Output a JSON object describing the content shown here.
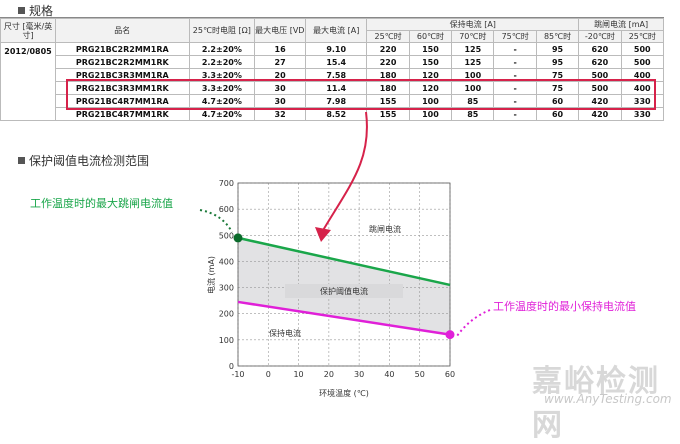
{
  "section1_title": "规格",
  "section2_title": "保护阈值电流检测范围",
  "table": {
    "headers": {
      "size": "尺寸 [毫米/英寸]",
      "part": "品名",
      "resistance": "25℃时电阻 [Ω]",
      "vmax": "最大电压 [VDC]",
      "imax": "最大电流 [A]",
      "hold": "保持电流 [A]",
      "trip": "跳闸电流 [mA]",
      "hold_temps": [
        "25℃时",
        "60℃时",
        "70℃时",
        "75℃时",
        "85℃时"
      ],
      "trip_temps": [
        "-20℃时",
        "25℃时"
      ]
    },
    "size_value": "2012/0805",
    "rows": [
      [
        "PRG21BC2R2MM1RA",
        "2.2±20%",
        "16",
        "9.10",
        "220",
        "150",
        "125",
        "-",
        "95",
        "620",
        "500"
      ],
      [
        "PRG21BC2R2MM1RK",
        "2.2±20%",
        "27",
        "15.4",
        "220",
        "150",
        "125",
        "-",
        "95",
        "620",
        "500"
      ],
      [
        "PRG21BC3R3MM1RA",
        "3.3±20%",
        "20",
        "7.58",
        "180",
        "120",
        "100",
        "-",
        "75",
        "500",
        "400"
      ],
      [
        "PRG21BC3R3MM1RK",
        "3.3±20%",
        "30",
        "11.4",
        "180",
        "120",
        "100",
        "-",
        "75",
        "500",
        "400"
      ],
      [
        "PRG21BC4R7MM1RA",
        "4.7±20%",
        "30",
        "7.98",
        "155",
        "100",
        "85",
        "-",
        "60",
        "420",
        "330"
      ],
      [
        "PRG21BC4R7MM1RK",
        "4.7±20%",
        "32",
        "8.52",
        "155",
        "100",
        "85",
        "-",
        "60",
        "420",
        "330"
      ]
    ]
  },
  "chart_data": {
    "type": "line",
    "xlabel": "环境温度 (℃)",
    "ylabel": "电流 (mA)",
    "xlim": [
      -10,
      60
    ],
    "ylim": [
      0,
      700
    ],
    "x_ticks": [
      "-10",
      "0",
      "10",
      "20",
      "30",
      "40",
      "50",
      "60"
    ],
    "y_ticks": [
      "0",
      "100",
      "200",
      "300",
      "400",
      "500",
      "600",
      "700"
    ],
    "grid": true,
    "series": [
      {
        "x": [
          -10,
          60
        ],
        "y": [
          490,
          310
        ],
        "color": "#1aa64a"
      },
      {
        "x": [
          -10,
          60
        ],
        "y": [
          245,
          120
        ],
        "color": "#e020d8"
      }
    ],
    "region_labels": {
      "trip": "跳闸电流",
      "protect": "保护阈值电流",
      "hold": "保持电流"
    },
    "annotations": {
      "max_trip": "工作温度时的最大跳闸电流值",
      "min_hold": "工作温度时的最小保持电流值"
    }
  },
  "colors": {
    "highlight": "#d6224a",
    "green": "#1aa64a",
    "magenta": "#e020d8",
    "band": "#e2e2e4"
  },
  "watermark": {
    "cn": "嘉峪检测网",
    "en": "www.AnyTesting.com"
  }
}
